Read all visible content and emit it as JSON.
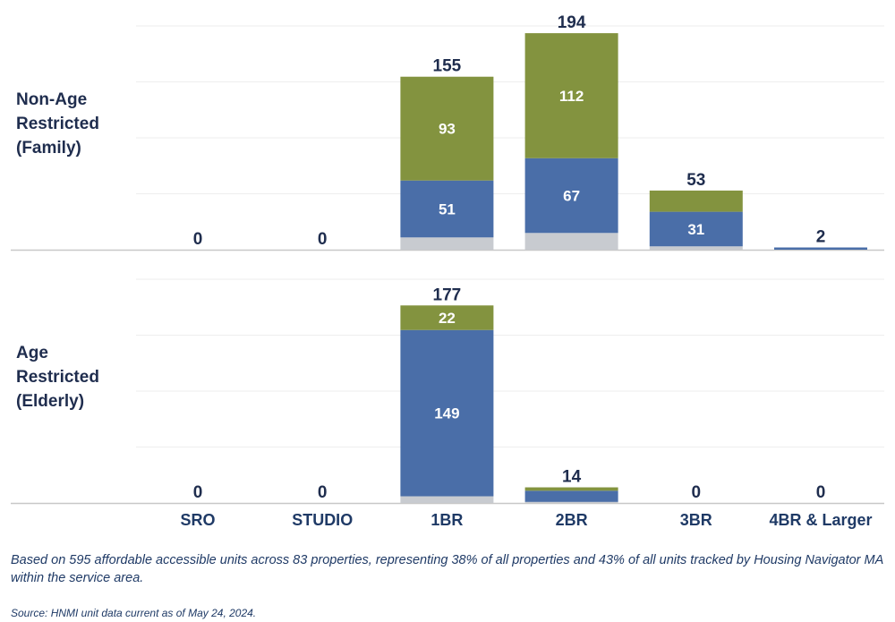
{
  "panels": [
    {
      "label_lines": [
        "Non-Age",
        "Restricted",
        "(Family)"
      ]
    },
    {
      "label_lines": [
        "Age",
        "Restricted",
        "(Elderly)"
      ]
    }
  ],
  "note": "Based on 595 affordable accessible units across 83 properties, representing 38% of all properties and 43% of all units tracked by Housing Navigator MA within the service area.",
  "source": "Source: HNMI unit data current as of May 24, 2024.",
  "colors": {
    "green": "#83933f",
    "blue": "#4a6ea8",
    "gray": "#c8cbd0",
    "text_dark": "#1f2d4e",
    "grid": "#eeeeee",
    "axis": "#c8c8c8"
  },
  "chart_data": {
    "type": "bar",
    "stacked": true,
    "categories": [
      "SRO",
      "STUDIO",
      "1BR",
      "2BR",
      "3BR",
      "4BR & Larger"
    ],
    "panels": [
      {
        "name": "Non-Age Restricted (Family)",
        "totals": [
          0,
          0,
          155,
          194,
          53,
          2
        ],
        "series": [
          {
            "color": "gray",
            "values": [
              0,
              0,
              11,
              15,
              3,
              0
            ]
          },
          {
            "color": "blue",
            "values": [
              0,
              0,
              51,
              67,
              31,
              2
            ]
          },
          {
            "color": "green",
            "values": [
              0,
              0,
              93,
              112,
              19,
              0
            ]
          }
        ],
        "segment_labels": [
          [
            null,
            null,
            null,
            null,
            null,
            null
          ],
          [
            null,
            null,
            "51",
            "67",
            "31",
            null
          ],
          [
            null,
            null,
            "93",
            "112",
            null,
            null
          ]
        ],
        "ylim": [
          0,
          200
        ]
      },
      {
        "name": "Age Restricted (Elderly)",
        "totals": [
          0,
          0,
          177,
          14,
          0,
          0
        ],
        "series": [
          {
            "color": "gray",
            "values": [
              0,
              0,
              6,
              1,
              0,
              0
            ]
          },
          {
            "color": "blue",
            "values": [
              0,
              0,
              149,
              10,
              0,
              0
            ]
          },
          {
            "color": "green",
            "values": [
              0,
              0,
              22,
              3,
              0,
              0
            ]
          }
        ],
        "segment_labels": [
          [
            null,
            null,
            null,
            null,
            null,
            null
          ],
          [
            null,
            null,
            "149",
            null,
            null,
            null
          ],
          [
            null,
            null,
            "22",
            null,
            null,
            null
          ]
        ],
        "ylim": [
          0,
          200
        ]
      }
    ],
    "grid": true
  }
}
